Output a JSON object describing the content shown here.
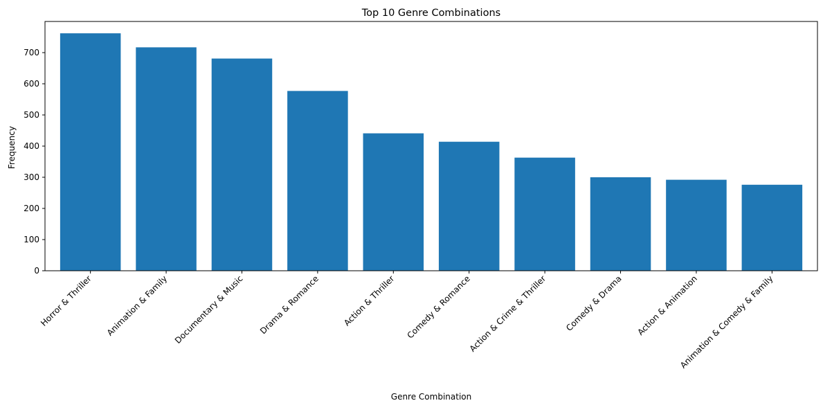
{
  "chart_data": {
    "type": "bar",
    "title": "Top 10 Genre Combinations",
    "xlabel": "Genre Combination",
    "ylabel": "Frequency",
    "categories": [
      "Horror & Thriller",
      "Animation & Family",
      "Documentary & Music",
      "Drama & Romance",
      "Action & Thriller",
      "Comedy & Romance",
      "Action & Crime & Thriller",
      "Comedy & Drama",
      "Action & Animation",
      "Animation & Comedy & Family"
    ],
    "values": [
      762,
      717,
      681,
      577,
      441,
      414,
      363,
      300,
      292,
      276
    ],
    "ylim": [
      0,
      800
    ],
    "yticks": [
      "0",
      "100",
      "200",
      "300",
      "400",
      "500",
      "600",
      "700"
    ],
    "grid": false,
    "bar_color": "#1f77b4"
  }
}
